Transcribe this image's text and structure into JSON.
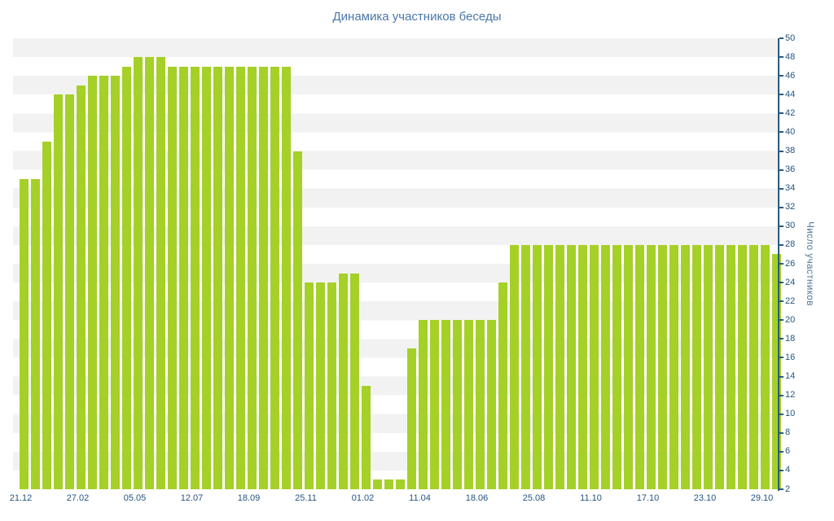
{
  "title": "Динамика участников беседы",
  "y_axis_title": "Число участников",
  "colors": {
    "bar": "#a5d028",
    "axis": "#2a5a80",
    "tick_label": "#235580",
    "title": "#4a78a8",
    "stripe": "#f2f2f2",
    "background": "#ffffff"
  },
  "chart_data": {
    "type": "bar",
    "title": "Динамика участников беседы",
    "xlabel": "",
    "ylabel": "Число участников",
    "ylim": [
      2,
      50
    ],
    "ytick_step": 2,
    "grid": "alternating horizontal stripes",
    "legend": "none",
    "x_labels": [
      "21.12",
      "27.02",
      "05.05",
      "12.07",
      "18.09",
      "25.11",
      "01.02",
      "11.04",
      "18.06",
      "25.08",
      "11.10",
      "17.10",
      "23.10",
      "29.10"
    ],
    "label_every": 5,
    "values": [
      35,
      35,
      39,
      44,
      44,
      45,
      46,
      46,
      46,
      47,
      48,
      48,
      48,
      47,
      47,
      47,
      47,
      47,
      47,
      47,
      47,
      47,
      47,
      47,
      38,
      24,
      24,
      24,
      25,
      25,
      13,
      3,
      3,
      3,
      17,
      20,
      20,
      20,
      20,
      20,
      20,
      20,
      24,
      28,
      28,
      28,
      28,
      28,
      28,
      28,
      28,
      28,
      28,
      28,
      28,
      28,
      28,
      28,
      28,
      28,
      28,
      28,
      28,
      28,
      28,
      28,
      27
    ]
  }
}
